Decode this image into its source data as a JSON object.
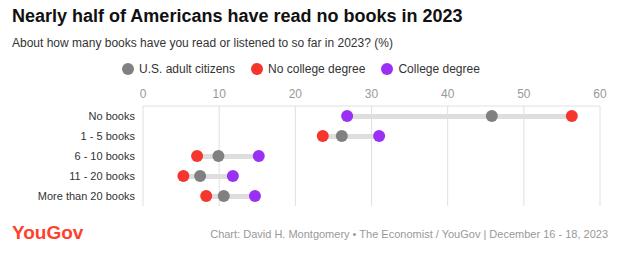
{
  "chart_data": {
    "type": "dumbbell",
    "title": "Nearly half of Americans have read no books in 2023",
    "subtitle": "About how many books have you read or listened to so far in 2023? (%)",
    "orientation": "horizontal",
    "categories": [
      "No books",
      "1 - 5 books",
      "6 - 10 books",
      "11 - 20 books",
      "More than 20 books"
    ],
    "series": [
      {
        "name": "U.S. adult citizens",
        "color": "#808080",
        "values": [
          45.8,
          26.1,
          9.9,
          7.5,
          10.6
        ]
      },
      {
        "name": "No college degree",
        "color": "#f5362c",
        "values": [
          56.3,
          23.6,
          7.1,
          5.3,
          8.3
        ]
      },
      {
        "name": "College degree",
        "color": "#9b30f5",
        "values": [
          26.8,
          31.0,
          15.2,
          11.8,
          14.7
        ]
      }
    ],
    "xlim": [
      0,
      60
    ],
    "xticks": [
      0,
      10,
      20,
      30,
      40,
      50,
      60
    ],
    "grid": true,
    "legend": "top-left",
    "marker": "circle",
    "source": "Chart: David H. Montgomery • The Economist / YouGov | December 16 - 18, 2023",
    "logo": "YouGov"
  }
}
